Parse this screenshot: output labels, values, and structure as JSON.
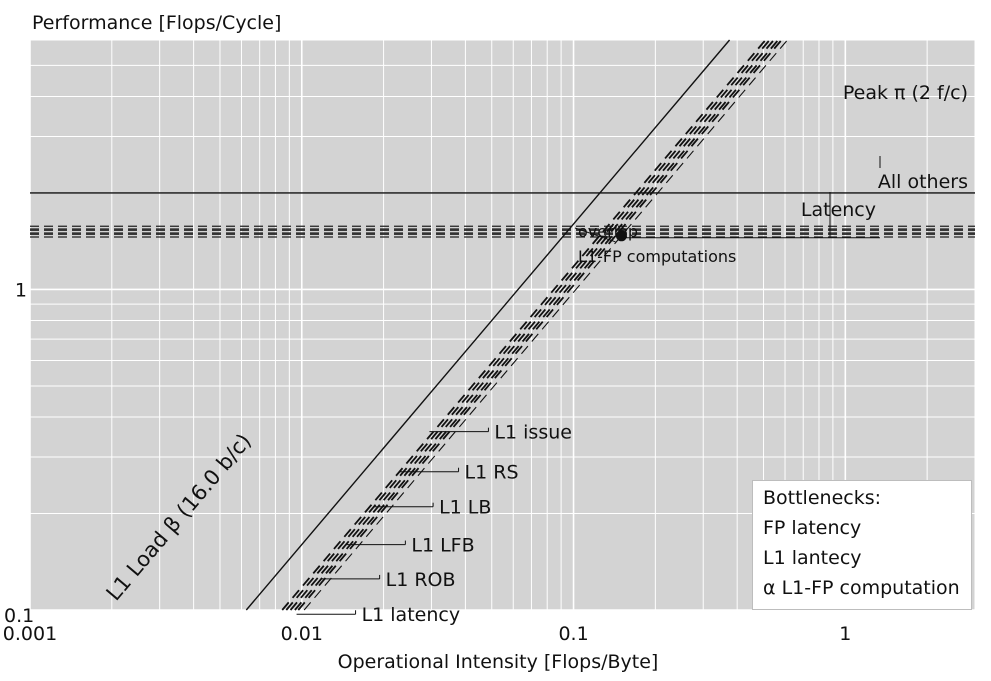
{
  "chart_data": {
    "type": "line",
    "title": "",
    "ylabel": "Performance [Flops/Cycle]",
    "xlabel": "Operational Intensity [Flops/Byte]",
    "x_scale": "log",
    "y_scale": "log",
    "xlim": [
      0.001,
      3
    ],
    "ylim": [
      0.1,
      6
    ],
    "x_ticks": [
      {
        "value": 0.001,
        "label": "0.001"
      },
      {
        "value": 0.01,
        "label": "0.01"
      },
      {
        "value": 0.1,
        "label": "0.1"
      },
      {
        "value": 1,
        "label": "1"
      }
    ],
    "y_ticks": [
      {
        "value": 0.1,
        "label": "0.1"
      },
      {
        "value": 1,
        "label": "1"
      }
    ],
    "grid": true,
    "peak": {
      "label": "Peak π (2 f/c)",
      "value": 2
    },
    "compute_ceilings": [
      {
        "name": "Latency",
        "value": 1.5
      },
      {
        "name": "All others",
        "value": 1.53
      }
    ],
    "bandwidth_roofs": [
      {
        "label": "L1 Load β (16.0 b/c)",
        "bandwidth": 16.0
      },
      {
        "name": "L1 issue",
        "bandwidth": 11.8
      },
      {
        "name": "L1 RS",
        "bandwidth": 11.4
      },
      {
        "name": "L1 LB",
        "bandwidth": 11.0
      },
      {
        "name": "L1 LFB",
        "bandwidth": 10.6
      },
      {
        "name": "L1 ROB",
        "bandwidth": 10.3
      },
      {
        "name": "L1 latency",
        "bandwidth": 9.8
      }
    ],
    "bandwidth_label_at_y": [
      {
        "name": "L1 issue",
        "y": 0.36
      },
      {
        "name": "L1 RS",
        "y": 0.27
      },
      {
        "name": "L1 LB",
        "y": 0.21
      },
      {
        "name": "L1 LFB",
        "y": 0.16
      },
      {
        "name": "L1 ROB",
        "y": 0.125
      },
      {
        "name": "L1 latency",
        "y": 0.097
      }
    ],
    "measured_point": {
      "x": 0.15,
      "y": 1.47
    },
    "annotation": {
      "line1": "overlap",
      "line2": "L1-FP computations"
    },
    "legend": {
      "position": "bottom-right",
      "title": "Bottlenecks:",
      "items": [
        "FP latency",
        "L1 lantecy",
        "α L1-FP computation"
      ]
    }
  }
}
